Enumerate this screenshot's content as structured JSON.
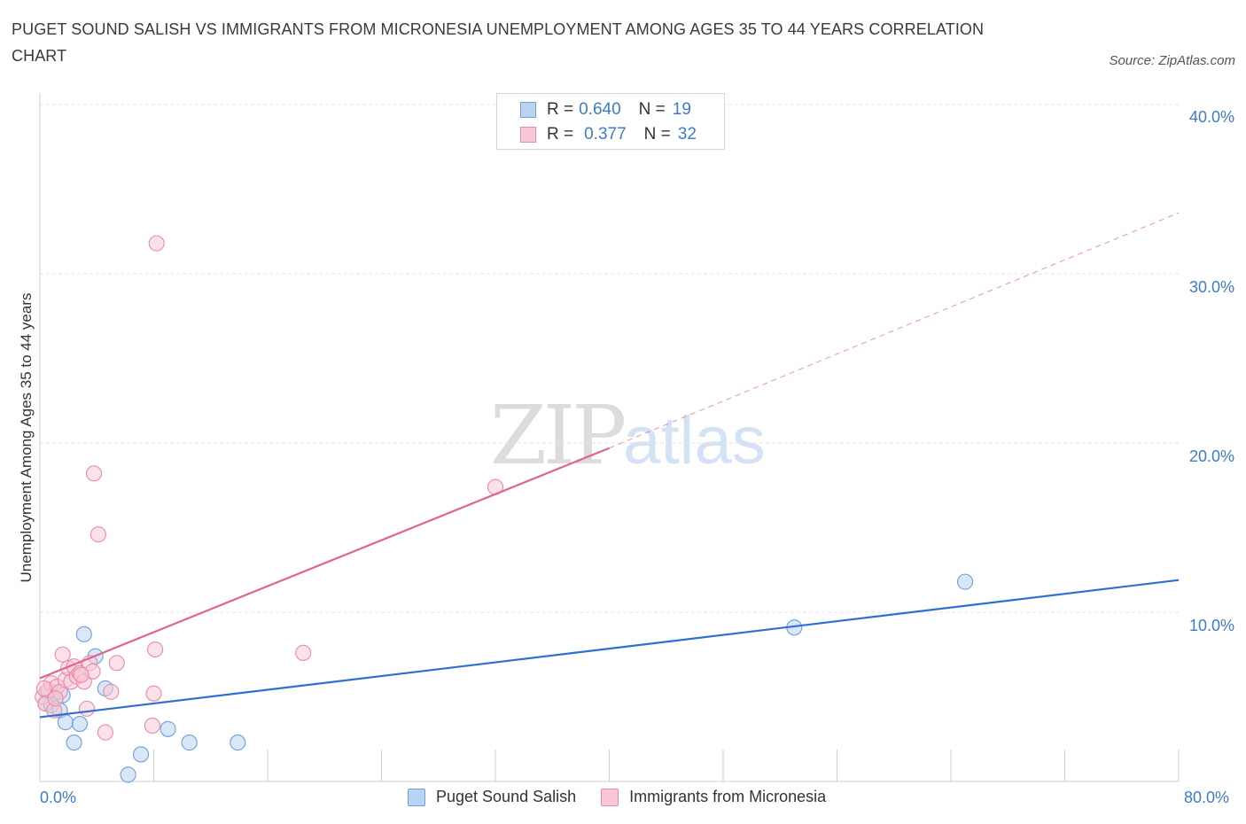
{
  "title": "PUGET SOUND SALISH VS IMMIGRANTS FROM MICRONESIA UNEMPLOYMENT AMONG AGES 35 TO 44 YEARS CORRELATION CHART",
  "source": "Source: ZipAtlas.com",
  "watermark": {
    "zip": "ZIP",
    "atlas": "atlas"
  },
  "legend": {
    "rows": [
      {
        "r_label": "R = ",
        "r_value": "0.640",
        "n_label": "N = ",
        "n_value": "19"
      },
      {
        "r_label": "R = ",
        "r_value": "0.377",
        "n_label": "N = ",
        "n_value": "32"
      }
    ]
  },
  "colors": {
    "blue_fill": "#b9d3f3",
    "blue_stroke": "#6d9fdc",
    "blue_line": "#2f6fd0",
    "pink_fill": "#f8c8d6",
    "pink_stroke": "#e98aa6",
    "pink_line": "#e0648c",
    "grid": "#e3e3e3",
    "tick_label": "#3d7cc9"
  },
  "chart_data": {
    "type": "scatter",
    "title": "PUGET SOUND SALISH VS IMMIGRANTS FROM MICRONESIA UNEMPLOYMENT AMONG AGES 35 TO 44 YEARS CORRELATION CHART",
    "xlabel": "",
    "ylabel": "Unemployment Among Ages 35 to 44 years",
    "xlim": [
      0,
      80
    ],
    "ylim": [
      0,
      40
    ],
    "x_tick_labels": [
      "0.0%",
      "80.0%"
    ],
    "y_tick_labels": [
      "10.0%",
      "20.0%",
      "30.0%",
      "40.0%"
    ],
    "y_ticks": [
      10,
      20,
      30,
      40
    ],
    "series": [
      {
        "name": "Puget Sound Salish",
        "color": "blue",
        "points": [
          [
            0.4,
            4.6
          ],
          [
            0.8,
            4.5
          ],
          [
            1.0,
            5.2
          ],
          [
            1.4,
            4.2
          ],
          [
            1.6,
            5.1
          ],
          [
            1.8,
            3.5
          ],
          [
            2.4,
            2.3
          ],
          [
            2.8,
            3.4
          ],
          [
            3.1,
            8.7
          ],
          [
            3.9,
            7.4
          ],
          [
            4.6,
            5.5
          ],
          [
            6.2,
            0.4
          ],
          [
            7.1,
            1.6
          ],
          [
            9.0,
            3.1
          ],
          [
            10.5,
            2.3
          ],
          [
            13.9,
            2.3
          ],
          [
            53.0,
            9.1
          ],
          [
            65.0,
            11.8
          ],
          [
            0.5,
            5.3
          ]
        ],
        "trend": {
          "x0": 0,
          "y0": 3.8,
          "x1": 80,
          "y1": 11.9
        }
      },
      {
        "name": "Immigrants from Micronesia",
        "color": "pink",
        "points": [
          [
            0.2,
            5.0
          ],
          [
            0.4,
            4.6
          ],
          [
            0.6,
            5.4
          ],
          [
            0.8,
            5.8
          ],
          [
            1.0,
            4.2
          ],
          [
            1.2,
            5.6
          ],
          [
            1.4,
            5.3
          ],
          [
            1.6,
            7.5
          ],
          [
            1.8,
            6.0
          ],
          [
            2.0,
            6.7
          ],
          [
            2.2,
            5.9
          ],
          [
            2.4,
            6.8
          ],
          [
            2.6,
            6.2
          ],
          [
            2.8,
            6.4
          ],
          [
            3.1,
            5.9
          ],
          [
            3.3,
            4.3
          ],
          [
            3.5,
            7.0
          ],
          [
            3.7,
            6.5
          ],
          [
            3.8,
            18.2
          ],
          [
            4.1,
            14.6
          ],
          [
            4.6,
            2.9
          ],
          [
            5.0,
            5.3
          ],
          [
            5.4,
            7.0
          ],
          [
            7.9,
            3.3
          ],
          [
            8.0,
            5.2
          ],
          [
            8.1,
            7.8
          ],
          [
            8.2,
            31.8
          ],
          [
            18.5,
            7.6
          ],
          [
            32.0,
            17.4
          ],
          [
            0.3,
            5.5
          ],
          [
            1.1,
            4.9
          ],
          [
            2.9,
            6.3
          ]
        ],
        "trend": {
          "x0": 0,
          "y0": 6.1,
          "x1": 40,
          "y1": 19.7
        },
        "trend_extended": {
          "x0": 40,
          "y0": 19.7,
          "x1": 80,
          "y1": 33.6
        }
      }
    ]
  }
}
